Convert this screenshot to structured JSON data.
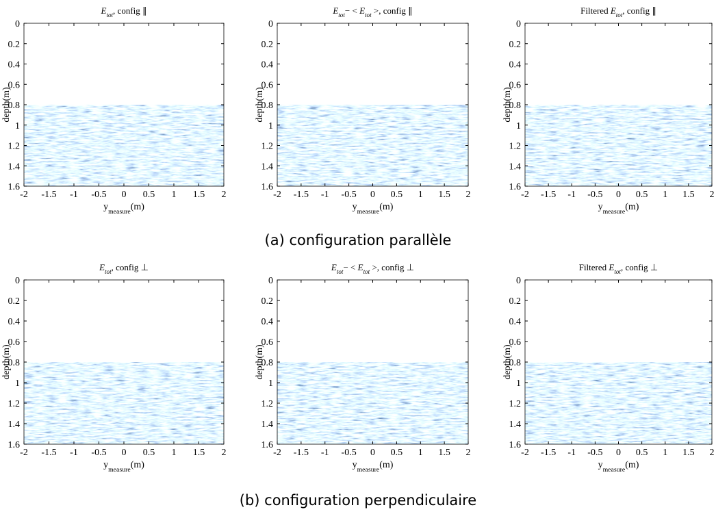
{
  "chart_data": [
    {
      "type": "image",
      "title": [
        {
          "text": "E",
          "math": true
        },
        {
          "text": "tot",
          "math": true,
          "sub": true
        },
        {
          "text": ", config ∥"
        }
      ],
      "xlabel": [
        {
          "text": "y"
        },
        {
          "text": "measure",
          "sub": true
        },
        {
          "text": "(m)"
        }
      ],
      "ylabel": "depth(m)",
      "xlim": [
        -2,
        2
      ],
      "xticks": [
        -2,
        -1.5,
        -1,
        -0.5,
        0,
        0.5,
        1,
        1.5,
        2
      ],
      "ylim": [
        0,
        1.6
      ],
      "yticks": [
        0,
        0.2,
        0.4,
        0.6,
        0.8,
        1,
        1.2,
        1.4,
        1.6
      ],
      "y_reversed": true,
      "image_ylim": [
        0.8,
        1.6
      ]
    },
    {
      "type": "image",
      "title": [
        {
          "text": "E",
          "math": true
        },
        {
          "text": "tot",
          "math": true,
          "sub": true
        },
        {
          "text": "− < "
        },
        {
          "text": "E",
          "math": true
        },
        {
          "text": "tot",
          "math": true,
          "sub": true
        },
        {
          "text": " >, config ∥"
        }
      ],
      "xlabel": [
        {
          "text": "y"
        },
        {
          "text": "measure",
          "sub": true
        },
        {
          "text": "(m)"
        }
      ],
      "ylabel": "depth(m)",
      "xlim": [
        -2,
        2
      ],
      "xticks": [
        -2,
        -1.5,
        -1,
        -0.5,
        0,
        0.5,
        1,
        1.5,
        2
      ],
      "ylim": [
        0,
        1.6
      ],
      "yticks": [
        0,
        0.2,
        0.4,
        0.6,
        0.8,
        1,
        1.2,
        1.4,
        1.6
      ],
      "y_reversed": true,
      "image_ylim": [
        0.8,
        1.6
      ]
    },
    {
      "type": "image",
      "title": [
        {
          "text": "Filtered "
        },
        {
          "text": "E",
          "math": true
        },
        {
          "text": "tot",
          "math": true,
          "sub": true
        },
        {
          "text": ", config ∥"
        }
      ],
      "xlabel": [
        {
          "text": "y"
        },
        {
          "text": "measure",
          "sub": true
        },
        {
          "text": "(m)"
        }
      ],
      "ylabel": "depth(m)",
      "xlim": [
        -2,
        2
      ],
      "xticks": [
        -2,
        -1.5,
        -1,
        -0.5,
        0,
        0.5,
        1,
        1.5,
        2
      ],
      "ylim": [
        0,
        1.6
      ],
      "yticks": [
        0,
        0.2,
        0.4,
        0.6,
        0.8,
        1,
        1.2,
        1.4,
        1.6
      ],
      "y_reversed": true,
      "image_ylim": [
        0.8,
        1.6
      ]
    },
    {
      "type": "image",
      "title": [
        {
          "text": "E",
          "math": true
        },
        {
          "text": "tot",
          "math": true,
          "sub": true
        },
        {
          "text": ", config ⊥"
        }
      ],
      "xlabel": [
        {
          "text": "y"
        },
        {
          "text": "measure",
          "sub": true
        },
        {
          "text": "(m)"
        }
      ],
      "ylabel": "depth(m)",
      "xlim": [
        -2,
        2
      ],
      "xticks": [
        -2,
        -1.5,
        -1,
        -0.5,
        0,
        0.5,
        1,
        1.5,
        2
      ],
      "ylim": [
        0,
        1.6
      ],
      "yticks": [
        0,
        0.2,
        0.4,
        0.6,
        0.8,
        1,
        1.2,
        1.4,
        1.6
      ],
      "y_reversed": true,
      "image_ylim": [
        0.8,
        1.6
      ]
    },
    {
      "type": "image",
      "title": [
        {
          "text": "E",
          "math": true
        },
        {
          "text": "tot",
          "math": true,
          "sub": true
        },
        {
          "text": "− < "
        },
        {
          "text": "E",
          "math": true
        },
        {
          "text": "tot",
          "math": true,
          "sub": true
        },
        {
          "text": " >, config ⊥"
        }
      ],
      "xlabel": [
        {
          "text": "y"
        },
        {
          "text": "measure",
          "sub": true
        },
        {
          "text": "(m)"
        }
      ],
      "ylabel": "depth(m)",
      "xlim": [
        -2,
        2
      ],
      "xticks": [
        -2,
        -1.5,
        -1,
        -0.5,
        0,
        0.5,
        1,
        1.5,
        2
      ],
      "ylim": [
        0,
        1.6
      ],
      "yticks": [
        0,
        0.2,
        0.4,
        0.6,
        0.8,
        1,
        1.2,
        1.4,
        1.6
      ],
      "y_reversed": true,
      "image_ylim": [
        0.8,
        1.6
      ]
    },
    {
      "type": "image",
      "title": [
        {
          "text": "Filtered "
        },
        {
          "text": "E",
          "math": true
        },
        {
          "text": "tot",
          "math": true,
          "sub": true
        },
        {
          "text": ", config ⊥"
        }
      ],
      "xlabel": [
        {
          "text": "y"
        },
        {
          "text": "measure",
          "sub": true
        },
        {
          "text": "(m)"
        }
      ],
      "ylabel": "depth(m)",
      "xlim": [
        -2,
        2
      ],
      "xticks": [
        -2,
        -1.5,
        -1,
        -0.5,
        0,
        0.5,
        1,
        1.5,
        2
      ],
      "ylim": [
        0,
        1.6
      ],
      "yticks": [
        0,
        0.2,
        0.4,
        0.6,
        0.8,
        1,
        1.2,
        1.4,
        1.6
      ],
      "y_reversed": true,
      "image_ylim": [
        0.8,
        1.6
      ]
    }
  ],
  "captions": [
    "(a) configuration parallèle",
    "(b) configuration perpendiculaire"
  ]
}
